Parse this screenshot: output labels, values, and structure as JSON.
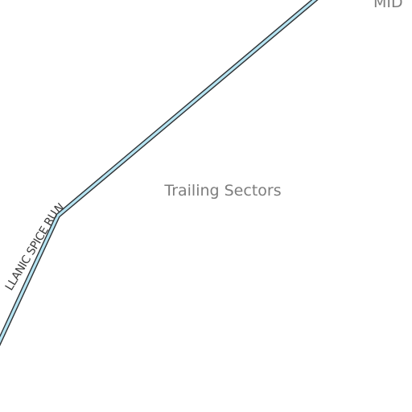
{
  "map": {
    "route": {
      "name": "LLANIC SPICE RUN",
      "color": "#b6e4f2",
      "casing_color": "#2f3336"
    },
    "region_label": "Trailing Sectors",
    "edge_label": "MID"
  }
}
